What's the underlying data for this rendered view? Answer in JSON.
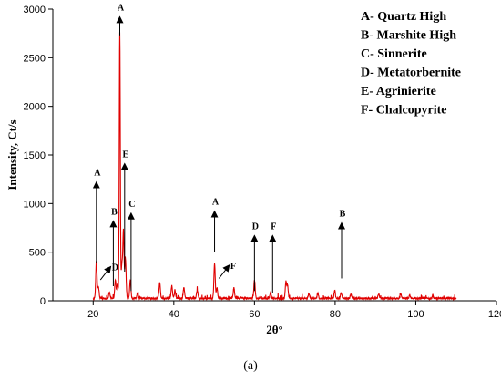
{
  "caption": "(a)",
  "chart_data": {
    "type": "line",
    "title": "",
    "xlabel": "2θ°",
    "ylabel": "Intensity, Ct/s",
    "xlim": [
      10,
      120
    ],
    "ylim": [
      0,
      3000
    ],
    "xticks": [
      20,
      40,
      60,
      80,
      100,
      120
    ],
    "yticks": [
      0,
      500,
      1000,
      1500,
      2000,
      2500,
      3000
    ],
    "xtick_labels": [
      "20",
      "40",
      "60",
      "80",
      "100",
      "120"
    ],
    "ytick_labels": [
      "0",
      "500",
      "1000",
      "1500",
      "2000",
      "2500",
      "3000"
    ],
    "grid": false,
    "line_color": "#e00000",
    "baseline": 25,
    "x_start": 20,
    "x_end": 110,
    "peaks": [
      {
        "x": 20.8,
        "y": 390
      },
      {
        "x": 21.3,
        "y": 120
      },
      {
        "x": 24.0,
        "y": 60
      },
      {
        "x": 25.5,
        "y": 190
      },
      {
        "x": 26.0,
        "y": 150
      },
      {
        "x": 26.6,
        "y": 2730
      },
      {
        "x": 27.1,
        "y": 330
      },
      {
        "x": 27.5,
        "y": 690
      },
      {
        "x": 28.0,
        "y": 410
      },
      {
        "x": 29.2,
        "y": 190
      },
      {
        "x": 31.0,
        "y": 60
      },
      {
        "x": 36.5,
        "y": 160
      },
      {
        "x": 39.5,
        "y": 130
      },
      {
        "x": 40.3,
        "y": 80
      },
      {
        "x": 42.5,
        "y": 110
      },
      {
        "x": 45.8,
        "y": 90
      },
      {
        "x": 50.1,
        "y": 360
      },
      {
        "x": 50.7,
        "y": 110
      },
      {
        "x": 54.9,
        "y": 110
      },
      {
        "x": 60.0,
        "y": 190
      },
      {
        "x": 64.0,
        "y": 60
      },
      {
        "x": 67.8,
        "y": 170
      },
      {
        "x": 68.2,
        "y": 130
      },
      {
        "x": 73.5,
        "y": 50
      },
      {
        "x": 75.7,
        "y": 55
      },
      {
        "x": 79.9,
        "y": 80
      },
      {
        "x": 81.5,
        "y": 60
      },
      {
        "x": 83.9,
        "y": 40
      },
      {
        "x": 90.8,
        "y": 45
      },
      {
        "x": 96.3,
        "y": 40
      },
      {
        "x": 98.5,
        "y": 30
      },
      {
        "x": 104.2,
        "y": 30
      }
    ],
    "annotations": [
      {
        "label": "A",
        "x": 20.8,
        "y_from": 390,
        "y_to": 1250
      },
      {
        "label": "B",
        "x": 25.0,
        "y_from": 150,
        "y_to": 850
      },
      {
        "label": "A",
        "x": 26.6,
        "y_from": 2730,
        "y_to": 2950
      },
      {
        "label": "E",
        "x": 27.8,
        "y_from": 300,
        "y_to": 1440
      },
      {
        "label": "C",
        "x": 29.4,
        "y_from": 100,
        "y_to": 930
      },
      {
        "label": "A",
        "x": 50.1,
        "y_from": 500,
        "y_to": 950
      },
      {
        "label": "D",
        "x": 60.0,
        "y_from": 100,
        "y_to": 700
      },
      {
        "label": "F",
        "x": 64.5,
        "y_from": 80,
        "y_to": 700
      },
      {
        "label": "B",
        "x": 81.6,
        "y_from": 230,
        "y_to": 830
      }
    ],
    "diagonal_annotations": [
      {
        "label": "D",
        "x_from": 21.8,
        "y_from": 215,
        "x_to": 24.4,
        "y_to": 340
      },
      {
        "label": "F",
        "x_from": 51.2,
        "y_from": 230,
        "x_to": 53.8,
        "y_to": 355
      }
    ],
    "legend": {
      "position": "top-right",
      "entries": [
        "A- Quartz High",
        "B- Marshite High",
        "C- Sinnerite",
        "D- Metatorbernite",
        "E- Agrinierite",
        "F- Chalcopyrite"
      ]
    }
  }
}
